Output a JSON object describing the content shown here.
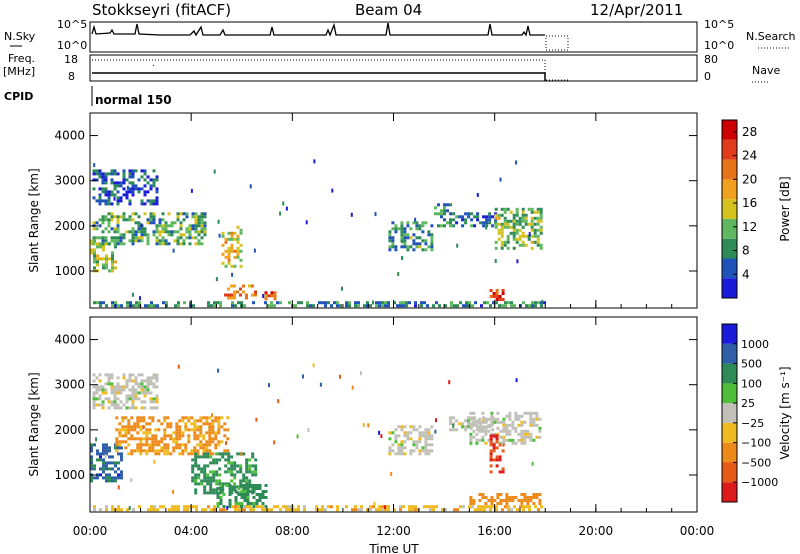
{
  "header": {
    "station": "Stokkseyri (fitACF)",
    "beam": "Beam 04",
    "date": "12/Apr/2011"
  },
  "strips": {
    "nsky_label": "N.Sky",
    "nsky_ticks": [
      "10^5",
      "10^0"
    ],
    "nsearch_label": "N.Search",
    "nsearch_ticks": [
      "10^5",
      "10^0"
    ],
    "freq_label": "Freq.",
    "freq_unit": "[MHz]",
    "freq_ticks": [
      "18",
      "8"
    ],
    "nave_label": "Nave",
    "nave_ticks": [
      "80",
      "0"
    ],
    "cpid_label": "CPID",
    "cpid_value": "normal 150"
  },
  "colors": {
    "power": [
      "#1a1adb",
      "#1f53b8",
      "#2e8b57",
      "#5fb85f",
      "#d6c21e",
      "#f2a020",
      "#e8741a",
      "#e03b1a",
      "#cc0000"
    ],
    "velocity": [
      "#1a1adb",
      "#2e5fa8",
      "#2e8b57",
      "#4fbe3a",
      "#c0c0b8",
      "#f0bb20",
      "#ee8a1a",
      "#e85a1a",
      "#dd1a1a"
    ]
  },
  "chart_data": [
    {
      "type": "heatmap",
      "name_id": "power-panel",
      "xlabel": "Time UT",
      "ylabel": "Slant Range [km]",
      "xlim": [
        0,
        24
      ],
      "ylim": [
        180,
        4500
      ],
      "x_ticks": [
        "00:00",
        "04:00",
        "08:00",
        "12:00",
        "16:00",
        "20:00",
        "00:00"
      ],
      "y_ticks": [
        1000,
        2000,
        3000,
        4000
      ],
      "colorbar_label": "Power [dB]",
      "colorbar_ticks": [
        4,
        8,
        12,
        16,
        20,
        24,
        28
      ],
      "colorbar_range": [
        0,
        30
      ],
      "regions": [
        {
          "t": [
            0.1,
            2.7
          ],
          "r": [
            2500,
            3250
          ],
          "v": 5
        },
        {
          "t": [
            0.0,
            1.0
          ],
          "r": [
            1000,
            1700
          ],
          "v": 13
        },
        {
          "t": [
            0.1,
            4.5
          ],
          "r": [
            1600,
            2300
          ],
          "v": 10
        },
        {
          "t": [
            5.2,
            6.0
          ],
          "r": [
            1100,
            2000
          ],
          "v": 16
        },
        {
          "t": [
            5.3,
            6.5
          ],
          "r": [
            400,
            700
          ],
          "v": 21
        },
        {
          "t": [
            6.9,
            7.3
          ],
          "r": [
            380,
            550
          ],
          "v": 24
        },
        {
          "t": [
            11.8,
            13.5
          ],
          "r": [
            1500,
            2100
          ],
          "v": 9
        },
        {
          "t": [
            13.6,
            14.2
          ],
          "r": [
            2000,
            2500
          ],
          "v": 8
        },
        {
          "t": [
            14.2,
            16.0
          ],
          "r": [
            2000,
            2300
          ],
          "v": 6
        },
        {
          "t": [
            16.0,
            17.8
          ],
          "r": [
            1500,
            2400
          ],
          "v": 12
        },
        {
          "t": [
            15.8,
            16.3
          ],
          "r": [
            350,
            600
          ],
          "v": 26
        },
        {
          "t": [
            0.0,
            18.0
          ],
          "r": [
            220,
            330
          ],
          "v": 8
        }
      ]
    },
    {
      "type": "heatmap",
      "name_id": "velocity-panel",
      "xlabel": "Time UT",
      "ylabel": "Slant Range [km]",
      "xlim": [
        0,
        24
      ],
      "ylim": [
        180,
        4500
      ],
      "x_ticks": [
        "00:00",
        "04:00",
        "08:00",
        "12:00",
        "16:00",
        "20:00",
        "00:00"
      ],
      "y_ticks": [
        1000,
        2000,
        3000,
        4000
      ],
      "colorbar_label": "Velocity [m s⁻¹]",
      "colorbar_ticks": [
        "1000",
        "500",
        "100",
        "25",
        "−25",
        "−100",
        "−500",
        "−1000"
      ],
      "regions": [
        {
          "t": [
            0.1,
            2.7
          ],
          "r": [
            2500,
            3250
          ],
          "v": 0
        },
        {
          "t": [
            0.0,
            1.2
          ],
          "r": [
            900,
            1700
          ],
          "v": 700
        },
        {
          "t": [
            1.0,
            5.5
          ],
          "r": [
            1500,
            2300
          ],
          "v": -150
        },
        {
          "t": [
            4.0,
            6.5
          ],
          "r": [
            600,
            1500
          ],
          "v": 150
        },
        {
          "t": [
            5.0,
            7.0
          ],
          "r": [
            300,
            800
          ],
          "v": 150
        },
        {
          "t": [
            11.8,
            13.5
          ],
          "r": [
            1500,
            2100
          ],
          "v": 0
        },
        {
          "t": [
            14.2,
            16.0
          ],
          "r": [
            2000,
            2300
          ],
          "v": 0
        },
        {
          "t": [
            15.0,
            17.8
          ],
          "r": [
            1700,
            2400
          ],
          "v": 0
        },
        {
          "t": [
            15.8,
            16.3
          ],
          "r": [
            1100,
            1900
          ],
          "v": -900
        },
        {
          "t": [
            15.0,
            17.8
          ],
          "r": [
            380,
            600
          ],
          "v": -250
        },
        {
          "t": [
            0.0,
            18.0
          ],
          "r": [
            220,
            330
          ],
          "v": -60
        }
      ]
    }
  ]
}
